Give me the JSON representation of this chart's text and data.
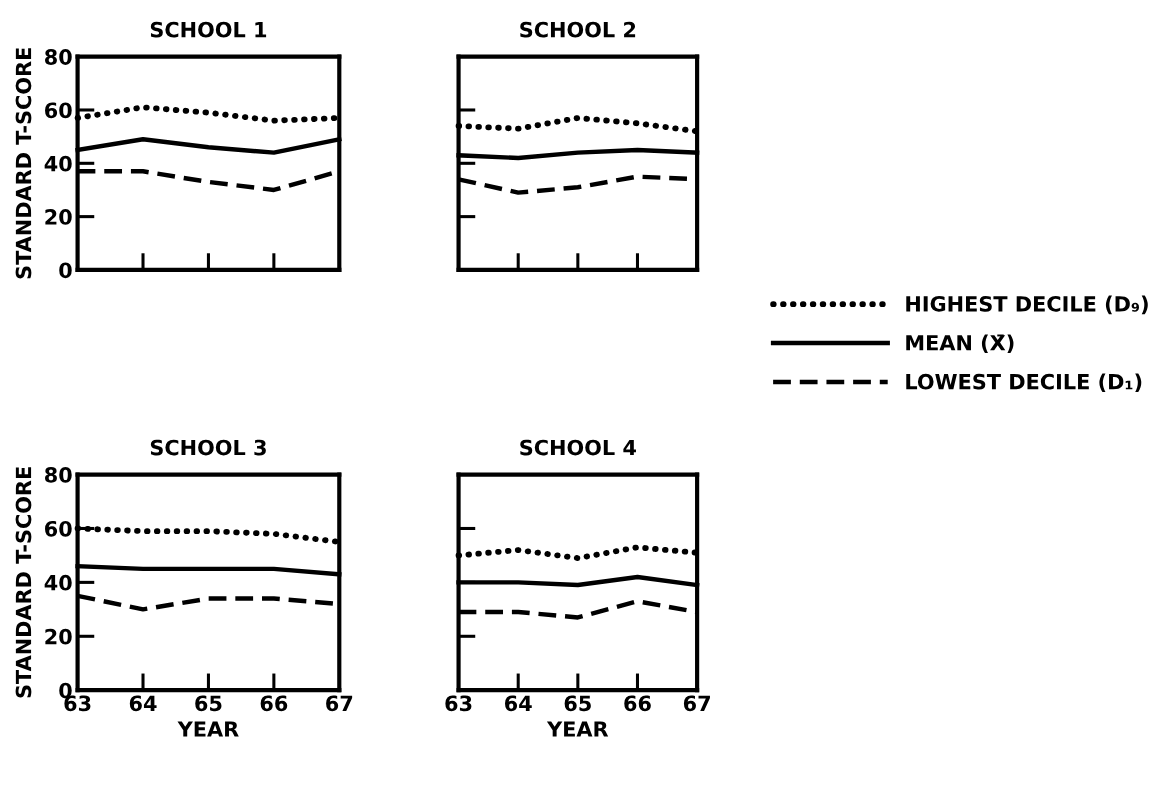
{
  "chart_data": [
    {
      "type": "line",
      "title": "SCHOOL 1",
      "ylabel": "STANDARD T-SCORE",
      "x": [
        63,
        64,
        65,
        66,
        67
      ],
      "xlim": [
        63,
        67
      ],
      "xticks": [
        63,
        64,
        65,
        66,
        67
      ],
      "ylim": [
        0,
        80
      ],
      "yticks": [
        0,
        20,
        40,
        60,
        80
      ],
      "tick_labels": "y",
      "grid": false,
      "legend": false,
      "series": [
        {
          "color": "#000000",
          "line_style": "dotted",
          "values": [
            57,
            61,
            59,
            56,
            57
          ]
        },
        {
          "color": "#000000",
          "line_style": "solid",
          "values": [
            45,
            49,
            46,
            44,
            49
          ]
        },
        {
          "color": "#000000",
          "line_style": "dashed",
          "values": [
            37,
            37,
            33,
            30,
            37
          ]
        }
      ]
    },
    {
      "type": "line",
      "title": "SCHOOL 2",
      "x": [
        63,
        64,
        65,
        66,
        67
      ],
      "xlim": [
        63,
        67
      ],
      "xticks": [
        63,
        64,
        65,
        66,
        67
      ],
      "ylim": [
        0,
        80
      ],
      "yticks": [
        0,
        20,
        40,
        60,
        80
      ],
      "tick_labels": false,
      "grid": false,
      "legend": "right",
      "series": [
        {
          "name": "HIGHEST DECILE (D₉)",
          "color": "#000000",
          "line_style": "dotted",
          "values": [
            54,
            53,
            57,
            55,
            52
          ]
        },
        {
          "name": "MEAN (X̄)",
          "color": "#000000",
          "line_style": "solid",
          "values": [
            43,
            42,
            44,
            45,
            44
          ]
        },
        {
          "name": "LOWEST DECILE (D₁)",
          "color": "#000000",
          "line_style": "dashed",
          "values": [
            34,
            29,
            31,
            35,
            34
          ]
        }
      ]
    },
    {
      "type": "line",
      "title": "SCHOOL 3",
      "xlabel": "YEAR",
      "ylabel": "STANDARD T-SCORE",
      "x": [
        63,
        64,
        65,
        66,
        67
      ],
      "xlim": [
        63,
        67
      ],
      "xticks": [
        63,
        64,
        65,
        66,
        67
      ],
      "ylim": [
        0,
        80
      ],
      "yticks": [
        0,
        20,
        40,
        60,
        80
      ],
      "grid": false,
      "legend": false,
      "series": [
        {
          "color": "#000000",
          "line_style": "dotted",
          "values": [
            60,
            59,
            59,
            58,
            55
          ]
        },
        {
          "color": "#000000",
          "line_style": "solid",
          "values": [
            46,
            45,
            45,
            45,
            43
          ]
        },
        {
          "color": "#000000",
          "line_style": "dashed",
          "values": [
            35,
            30,
            34,
            34,
            32
          ]
        }
      ]
    },
    {
      "type": "line",
      "title": "SCHOOL 4",
      "xlabel": "YEAR",
      "x": [
        63,
        64,
        65,
        66,
        67
      ],
      "xlim": [
        63,
        67
      ],
      "xticks": [
        63,
        64,
        65,
        66,
        67
      ],
      "ylim": [
        0,
        80
      ],
      "yticks": [
        0,
        20,
        40,
        60,
        80
      ],
      "tick_labels": "x",
      "grid": false,
      "legend": false,
      "series": [
        {
          "color": "#000000",
          "line_style": "dotted",
          "values": [
            50,
            52,
            49,
            53,
            51
          ]
        },
        {
          "color": "#000000",
          "line_style": "solid",
          "values": [
            40,
            40,
            39,
            42,
            39
          ]
        },
        {
          "color": "#000000",
          "line_style": "dashed",
          "values": [
            29,
            29,
            27,
            33,
            29
          ]
        }
      ]
    }
  ]
}
